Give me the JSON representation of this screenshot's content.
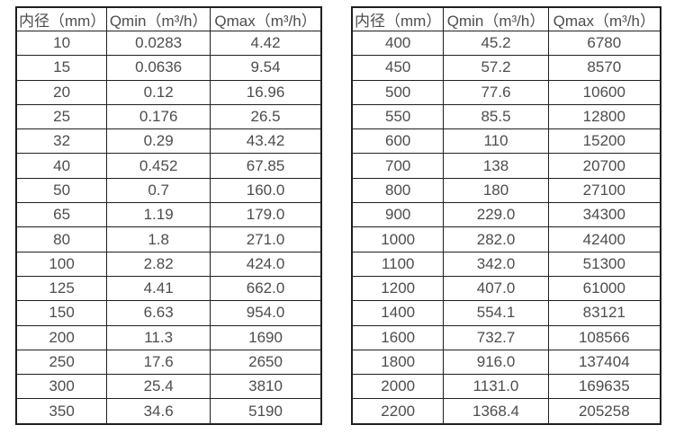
{
  "page": {
    "background_color": "#ffffff",
    "text_color": "#4d4d4d",
    "border_color": "#1f1f1f"
  },
  "tables": [
    {
      "name": "small-diameter-flow-table",
      "headers": [
        "内径（mm）",
        "Qmin（m³/h）",
        "Qmax（m³/h）"
      ],
      "rows": [
        [
          "10",
          "0.0283",
          "4.42"
        ],
        [
          "15",
          "0.0636",
          "9.54"
        ],
        [
          "20",
          "0.12",
          "16.96"
        ],
        [
          "25",
          "0.176",
          "26.5"
        ],
        [
          "32",
          "0.29",
          "43.42"
        ],
        [
          "40",
          "0.452",
          "67.85"
        ],
        [
          "50",
          "0.7",
          "160.0"
        ],
        [
          "65",
          "1.19",
          "179.0"
        ],
        [
          "80",
          "1.8",
          "271.0"
        ],
        [
          "100",
          "2.82",
          "424.0"
        ],
        [
          "125",
          "4.41",
          "662.0"
        ],
        [
          "150",
          "6.63",
          "954.0"
        ],
        [
          "200",
          "11.3",
          "1690"
        ],
        [
          "250",
          "17.6",
          "2650"
        ],
        [
          "300",
          "25.4",
          "3810"
        ],
        [
          "350",
          "34.6",
          "5190"
        ]
      ]
    },
    {
      "name": "large-diameter-flow-table",
      "headers": [
        "内径（mm）",
        "Qmin（m³/h）",
        "Qmax（m³/h）"
      ],
      "rows": [
        [
          "400",
          "45.2",
          "6780"
        ],
        [
          "450",
          "57.2",
          "8570"
        ],
        [
          "500",
          "77.6",
          "10600"
        ],
        [
          "550",
          "85.5",
          "12800"
        ],
        [
          "600",
          "110",
          "15200"
        ],
        [
          "700",
          "138",
          "20700"
        ],
        [
          "800",
          "180",
          "27100"
        ],
        [
          "900",
          "229.0",
          "34300"
        ],
        [
          "1000",
          "282.0",
          "42400"
        ],
        [
          "1100",
          "342.0",
          "51300"
        ],
        [
          "1200",
          "407.0",
          "61000"
        ],
        [
          "1400",
          "554.1",
          "83121"
        ],
        [
          "1600",
          "732.7",
          "108566"
        ],
        [
          "1800",
          "916.0",
          "137404"
        ],
        [
          "2000",
          "1131.0",
          "169635"
        ],
        [
          "2200",
          "1368.4",
          "205258"
        ]
      ]
    }
  ]
}
